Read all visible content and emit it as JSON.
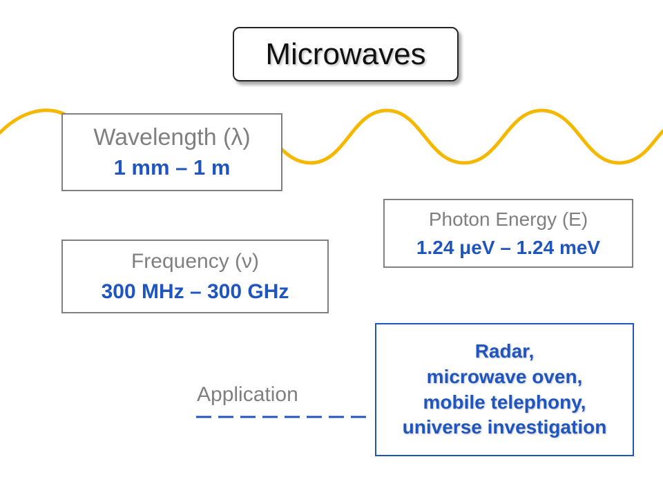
{
  "title": "Microwaves",
  "wavelength": {
    "label": "Wavelength (λ)",
    "value": "1 mm – 1 m"
  },
  "frequency": {
    "label": "Frequency (ν)",
    "value": "300 MHz – 300 GHz"
  },
  "photon_energy": {
    "label": "Photon Energy (E)",
    "value": "1.24 μeV – 1.24 meV"
  },
  "application": {
    "label": "Application",
    "lines": [
      "Radar,",
      "microwave oven,",
      "mobile telephony,",
      "universe investigation"
    ]
  },
  "colors": {
    "wave": "#f5b800",
    "value_text": "#1f55bf",
    "label_text": "#7f7f7f",
    "application_border": "#1f55bf",
    "dashed_connector": "#1f55bf"
  }
}
